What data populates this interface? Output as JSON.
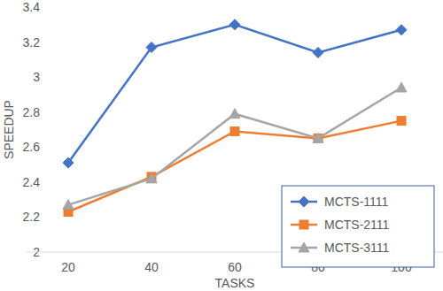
{
  "chart_data": {
    "type": "line",
    "x_label": "TASKS",
    "y_label": "SPEEDUP",
    "categories": [
      "20",
      "40",
      "60",
      "80",
      "100"
    ],
    "series": [
      {
        "name": "MCTS-1111",
        "color": "#4472c4",
        "marker": "diamond",
        "values": [
          2.51,
          3.17,
          3.3,
          3.14,
          3.27
        ]
      },
      {
        "name": "MCTS-2111",
        "color": "#ed7d31",
        "marker": "square",
        "values": [
          2.23,
          2.43,
          2.69,
          2.65,
          2.75
        ]
      },
      {
        "name": "MCTS-3111",
        "color": "#a5a5a5",
        "marker": "triangle",
        "values": [
          2.27,
          2.42,
          2.79,
          2.65,
          2.94
        ]
      }
    ],
    "ylim": [
      2,
      3.4
    ],
    "yticks": [
      2,
      2.2,
      2.4,
      2.6,
      2.8,
      3,
      3.2,
      3.4
    ],
    "grid": false,
    "legend": "bottom-right"
  }
}
